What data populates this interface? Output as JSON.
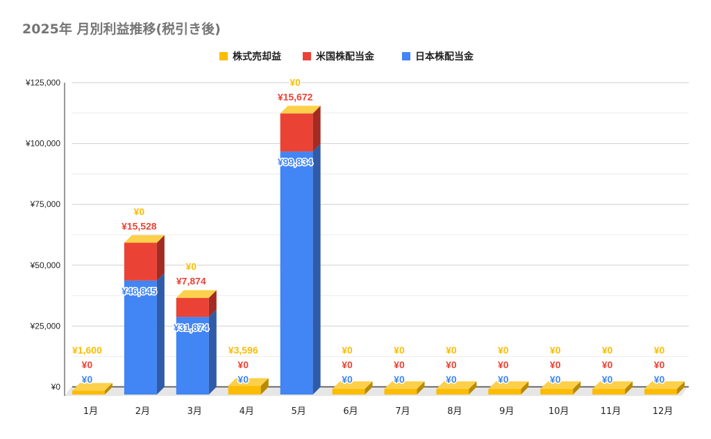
{
  "chart_data": {
    "type": "bar",
    "stacked": true,
    "title": "2025年 月別利益推移(税引き後)",
    "categories": [
      "1月",
      "2月",
      "3月",
      "4月",
      "5月",
      "6月",
      "7月",
      "8月",
      "9月",
      "10月",
      "11月",
      "12月"
    ],
    "series": [
      {
        "name": "日本株配当金",
        "color": "#4285f4",
        "side_color": "#2f5ca8",
        "values": [
          0,
          46845,
          31874,
          0,
          99834,
          0,
          0,
          0,
          0,
          0,
          0,
          0
        ],
        "labels": [
          "¥0",
          "¥46,845",
          "¥31,874",
          "¥0",
          "¥99,834",
          "¥0",
          "¥0",
          "¥0",
          "¥0",
          "¥0",
          "¥0",
          "¥0"
        ]
      },
      {
        "name": "米国株配当金",
        "color": "#ea4335",
        "side_color": "#a32b22",
        "values": [
          0,
          15528,
          7874,
          0,
          15672,
          0,
          0,
          0,
          0,
          0,
          0,
          0
        ],
        "labels": [
          "¥0",
          "¥15,528",
          "¥7,874",
          "¥0",
          "¥15,672",
          "¥0",
          "¥0",
          "¥0",
          "¥0",
          "¥0",
          "¥0",
          "¥0"
        ]
      },
      {
        "name": "株式売却益",
        "color": "#fbbc04",
        "side_color": "#b88a00",
        "values": [
          1600,
          0,
          0,
          3596,
          0,
          0,
          0,
          0,
          0,
          0,
          0,
          0
        ],
        "labels": [
          "¥1,600",
          "¥0",
          "¥0",
          "¥3,596",
          "¥0",
          "¥0",
          "¥0",
          "¥0",
          "¥0",
          "¥0",
          "¥0",
          "¥0"
        ]
      }
    ],
    "legend_order": [
      "株式売却益",
      "米国株配当金",
      "日本株配当金"
    ],
    "legend_position": "top",
    "ylim": [
      0,
      125000
    ],
    "yticks": [
      0,
      25000,
      50000,
      75000,
      100000,
      125000
    ],
    "ytick_labels": [
      "¥0",
      "¥25,000",
      "¥50,000",
      "¥75,000",
      "¥100,000",
      "¥125,000"
    ],
    "grid": true,
    "style": "3d"
  }
}
